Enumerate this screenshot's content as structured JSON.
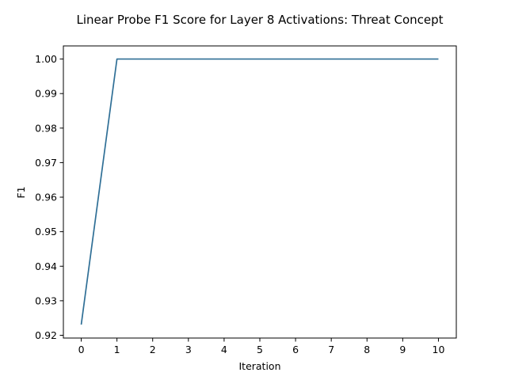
{
  "chart_data": {
    "type": "line",
    "title": "Linear Probe F1 Score for Layer 8 Activations: Threat Concept",
    "xlabel": "Iteration",
    "ylabel": "F1",
    "x": [
      0,
      1,
      2,
      3,
      4,
      5,
      6,
      7,
      8,
      9,
      10
    ],
    "series": [
      {
        "values": [
          0.9231,
          1.0,
          1.0,
          1.0,
          1.0,
          1.0,
          1.0,
          1.0,
          1.0,
          1.0,
          1.0
        ],
        "color": "#2f6f96"
      }
    ],
    "xlim": [
      -0.5,
      10.5
    ],
    "ylim": [
      0.9192,
      1.0038
    ],
    "xticks": [
      0,
      1,
      2,
      3,
      4,
      5,
      6,
      7,
      8,
      9,
      10
    ],
    "xtick_labels": [
      "0",
      "1",
      "2",
      "3",
      "4",
      "5",
      "6",
      "7",
      "8",
      "9",
      "10"
    ],
    "yticks": [
      0.92,
      0.93,
      0.94,
      0.95,
      0.96,
      0.97,
      0.98,
      0.99,
      1.0
    ],
    "ytick_labels": [
      "0.92",
      "0.93",
      "0.94",
      "0.95",
      "0.96",
      "0.97",
      "0.98",
      "0.99",
      "1.00"
    ],
    "grid": false,
    "legend": "none"
  }
}
